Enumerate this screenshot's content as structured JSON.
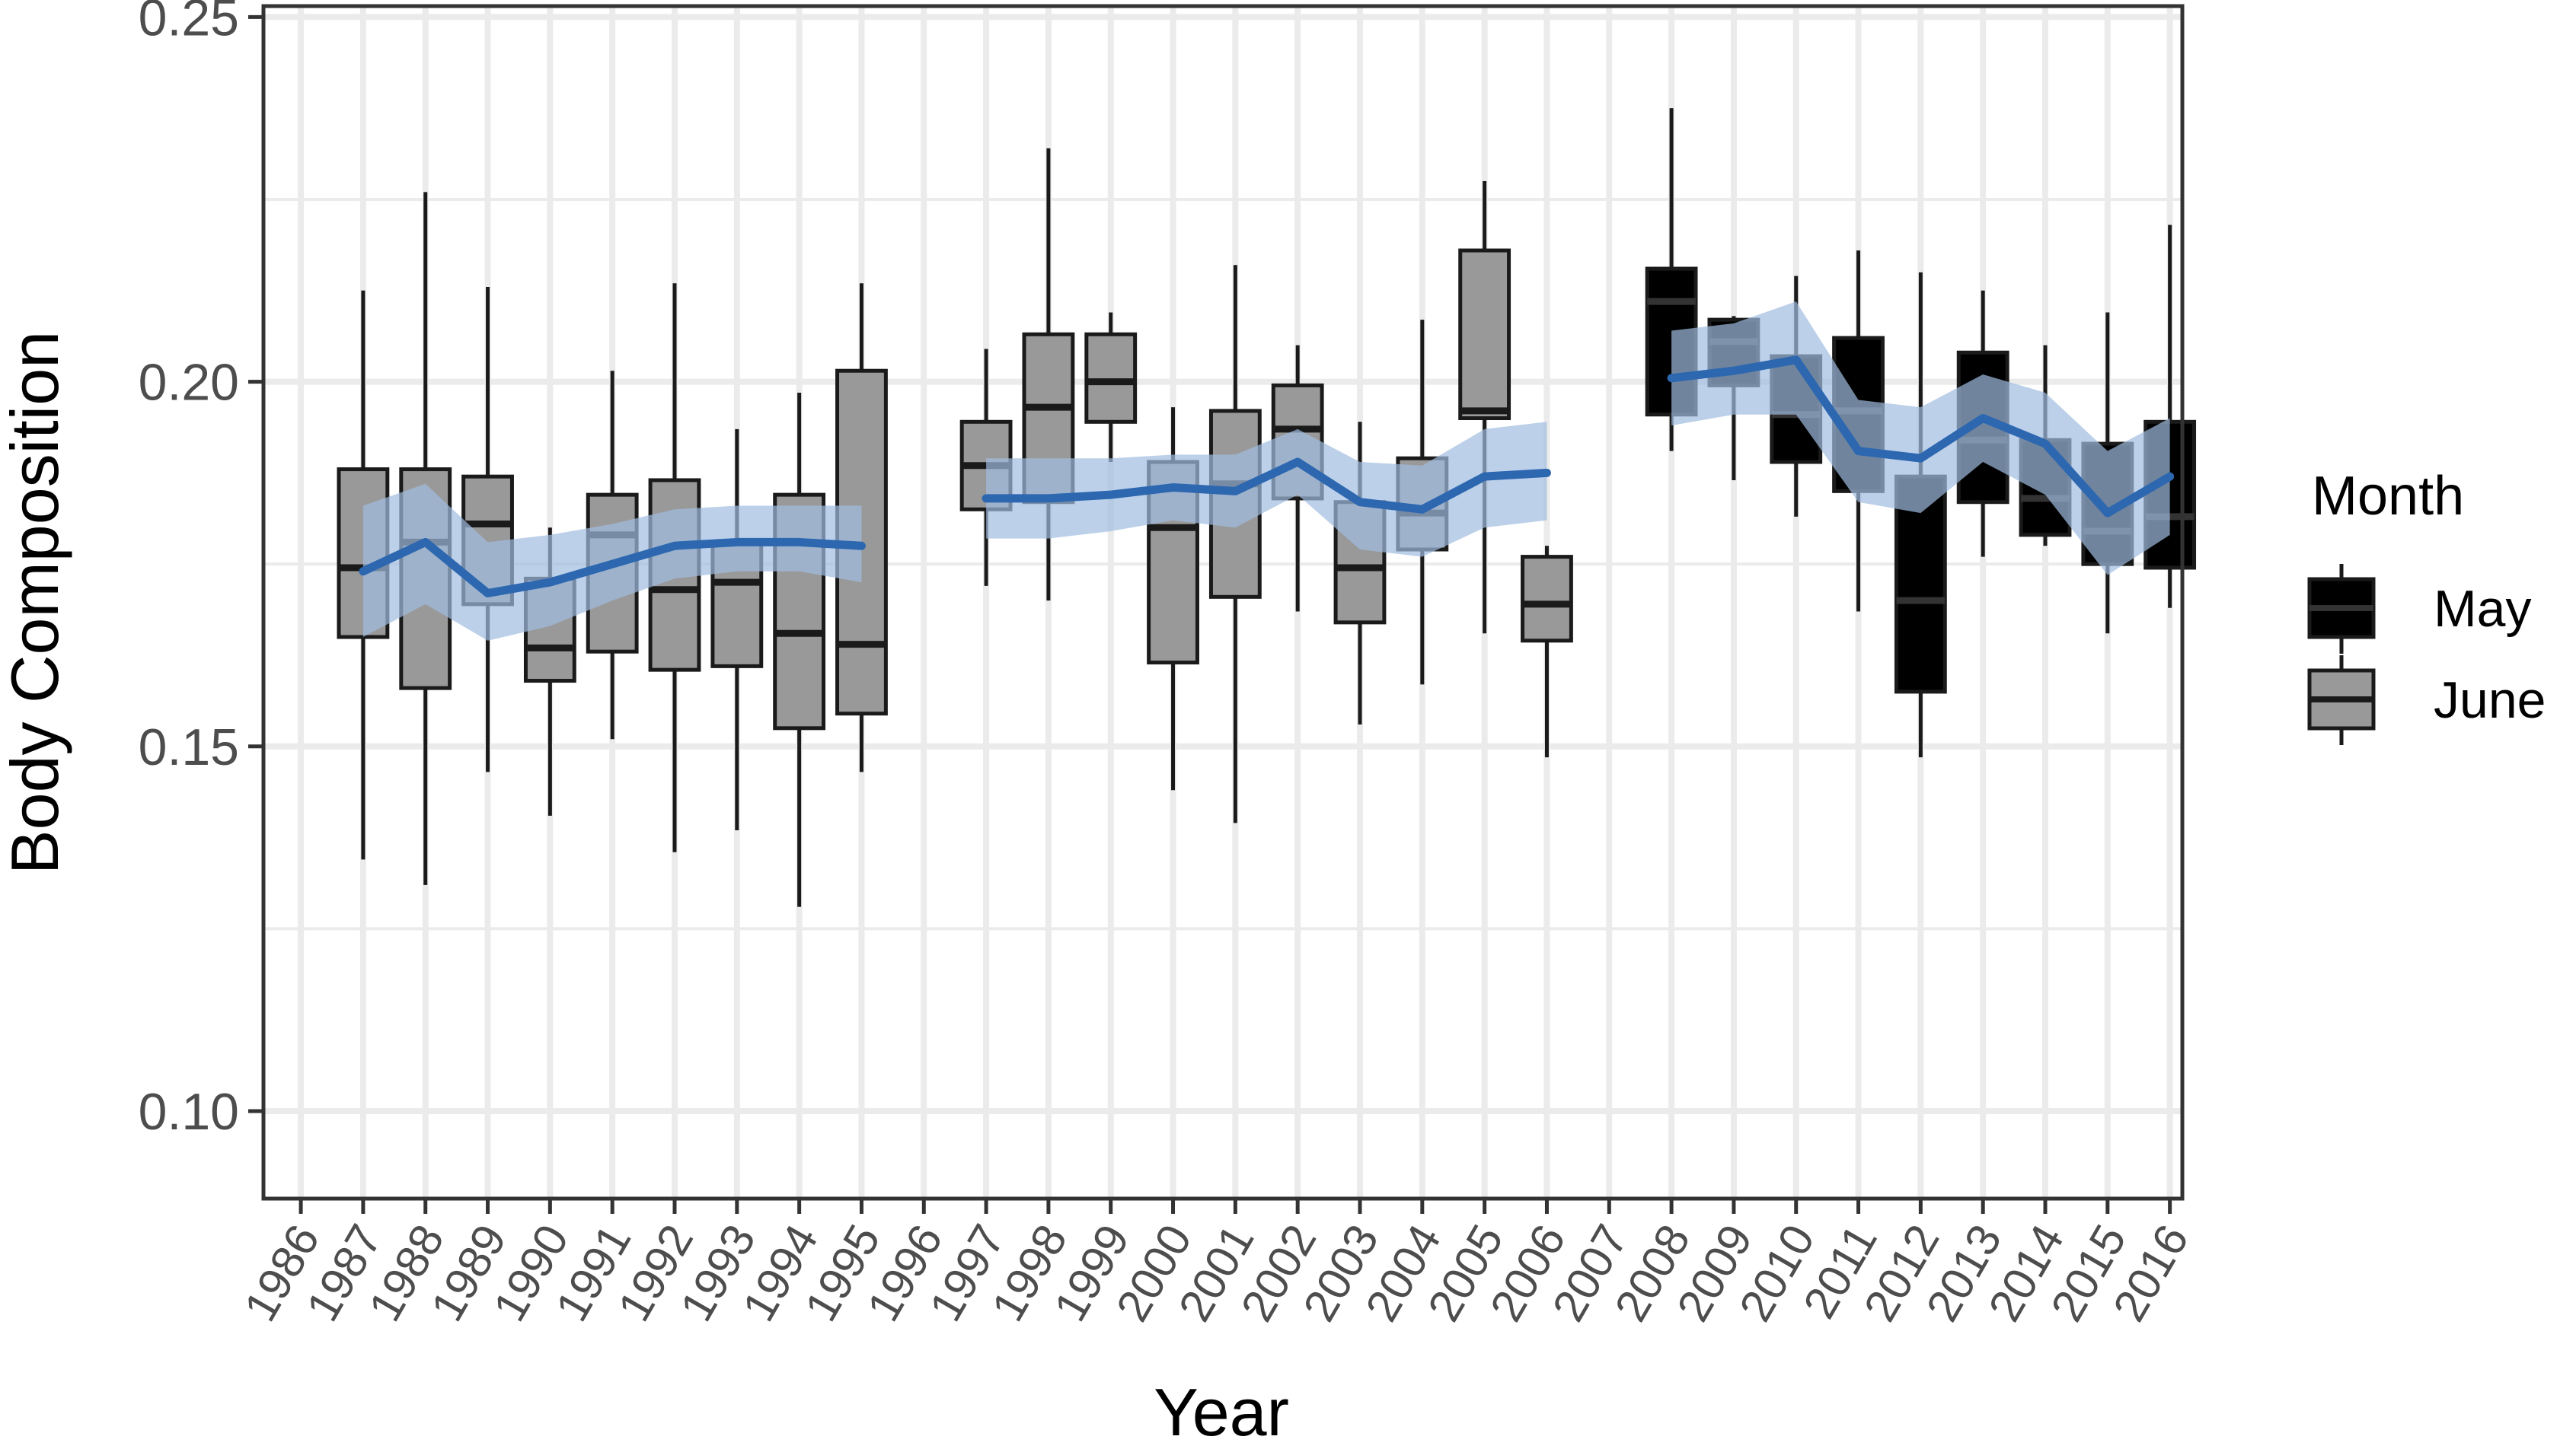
{
  "chart_data": {
    "type": "boxplot",
    "xlabel": "Year",
    "ylabel": "Body Composition",
    "ylim": [
      0.088,
      0.2515
    ],
    "y_ticks": [
      0.1,
      0.15,
      0.2,
      0.25
    ],
    "y_tick_labels": [
      "0.10",
      "0.15",
      "0.20",
      "0.25"
    ],
    "categories": [
      "1986",
      "1987",
      "1988",
      "1989",
      "1990",
      "1991",
      "1992",
      "1993",
      "1994",
      "1995",
      "1996",
      "1997",
      "1998",
      "1999",
      "2000",
      "2001",
      "2002",
      "2003",
      "2004",
      "2005",
      "2006",
      "2007",
      "2008",
      "2009",
      "2010",
      "2011",
      "2012",
      "2013",
      "2014",
      "2015",
      "2016"
    ],
    "grid": true,
    "colors": {
      "May": "#000000",
      "June": "#999999",
      "trend_line": "#2c67b0",
      "ribbon": "#9fbcdf",
      "grid": "#ebebeb",
      "text": "#4d4d4d"
    },
    "legend": {
      "title": "Month",
      "position": "right",
      "entries": [
        "May",
        "June"
      ]
    },
    "boxes": [
      {
        "year": "1987",
        "month": "June",
        "min": 0.1345,
        "q1": 0.165,
        "median": 0.1745,
        "q3": 0.188,
        "max": 0.2125
      },
      {
        "year": "1988",
        "month": "June",
        "min": 0.131,
        "q1": 0.158,
        "median": 0.178,
        "q3": 0.188,
        "max": 0.226
      },
      {
        "year": "1989",
        "month": "June",
        "min": 0.1465,
        "q1": 0.1695,
        "median": 0.1805,
        "q3": 0.187,
        "max": 0.213
      },
      {
        "year": "1990",
        "month": "June",
        "min": 0.1405,
        "q1": 0.159,
        "median": 0.1635,
        "q3": 0.173,
        "max": 0.18
      },
      {
        "year": "1991",
        "month": "June",
        "min": 0.151,
        "q1": 0.163,
        "median": 0.179,
        "q3": 0.1845,
        "max": 0.2015
      },
      {
        "year": "1992",
        "month": "June",
        "min": 0.1355,
        "q1": 0.1605,
        "median": 0.1715,
        "q3": 0.1865,
        "max": 0.2135
      },
      {
        "year": "1993",
        "month": "June",
        "min": 0.1385,
        "q1": 0.161,
        "median": 0.1725,
        "q3": 0.178,
        "max": 0.1935
      },
      {
        "year": "1994",
        "month": "June",
        "min": 0.128,
        "q1": 0.1525,
        "median": 0.1655,
        "q3": 0.1845,
        "max": 0.1985
      },
      {
        "year": "1995",
        "month": "June",
        "min": 0.1465,
        "q1": 0.1545,
        "median": 0.164,
        "q3": 0.2015,
        "max": 0.2135
      },
      {
        "year": "1997",
        "month": "June",
        "min": 0.172,
        "q1": 0.1825,
        "median": 0.1885,
        "q3": 0.1945,
        "max": 0.2045
      },
      {
        "year": "1998",
        "month": "June",
        "min": 0.17,
        "q1": 0.1835,
        "median": 0.1965,
        "q3": 0.2065,
        "max": 0.232
      },
      {
        "year": "1999",
        "month": "June",
        "min": 0.189,
        "q1": 0.1945,
        "median": 0.2,
        "q3": 0.2065,
        "max": 0.2095
      },
      {
        "year": "2000",
        "month": "June",
        "min": 0.144,
        "q1": 0.1615,
        "median": 0.18,
        "q3": 0.189,
        "max": 0.1965
      },
      {
        "year": "2001",
        "month": "June",
        "min": 0.1395,
        "q1": 0.1705,
        "median": 0.186,
        "q3": 0.196,
        "max": 0.216
      },
      {
        "year": "2002",
        "month": "June",
        "min": 0.1685,
        "q1": 0.184,
        "median": 0.1935,
        "q3": 0.1995,
        "max": 0.205
      },
      {
        "year": "2003",
        "month": "June",
        "min": 0.153,
        "q1": 0.167,
        "median": 0.1745,
        "q3": 0.1835,
        "max": 0.1945
      },
      {
        "year": "2004",
        "month": "June",
        "min": 0.1585,
        "q1": 0.177,
        "median": 0.182,
        "q3": 0.1895,
        "max": 0.2085
      },
      {
        "year": "2005",
        "month": "June",
        "min": 0.1655,
        "q1": 0.195,
        "median": 0.196,
        "q3": 0.218,
        "max": 0.2275
      },
      {
        "year": "2006",
        "month": "June",
        "min": 0.1485,
        "q1": 0.1645,
        "median": 0.1695,
        "q3": 0.176,
        "max": 0.1775
      },
      {
        "year": "2008",
        "month": "May",
        "min": 0.1905,
        "q1": 0.1955,
        "median": 0.211,
        "q3": 0.2155,
        "max": 0.2375
      },
      {
        "year": "2009",
        "month": "May",
        "min": 0.1865,
        "q1": 0.1995,
        "median": 0.2055,
        "q3": 0.2085,
        "max": 0.209
      },
      {
        "year": "2010",
        "month": "May",
        "min": 0.1815,
        "q1": 0.189,
        "median": 0.1955,
        "q3": 0.2035,
        "max": 0.2145
      },
      {
        "year": "2011",
        "month": "May",
        "min": 0.1685,
        "q1": 0.185,
        "median": 0.196,
        "q3": 0.206,
        "max": 0.218
      },
      {
        "year": "2012",
        "month": "May",
        "min": 0.1485,
        "q1": 0.1575,
        "median": 0.17,
        "q3": 0.187,
        "max": 0.215
      },
      {
        "year": "2013",
        "month": "May",
        "min": 0.176,
        "q1": 0.1835,
        "median": 0.192,
        "q3": 0.204,
        "max": 0.2125
      },
      {
        "year": "2014",
        "month": "May",
        "min": 0.1775,
        "q1": 0.179,
        "median": 0.184,
        "q3": 0.192,
        "max": 0.205
      },
      {
        "year": "2015",
        "month": "May",
        "min": 0.1655,
        "q1": 0.175,
        "median": 0.1795,
        "q3": 0.1915,
        "max": 0.2095
      },
      {
        "year": "2016",
        "month": "May",
        "min": 0.169,
        "q1": 0.1745,
        "median": 0.1815,
        "q3": 0.1945,
        "max": 0.2215
      }
    ],
    "trend_segments": [
      {
        "years": [
          "1987",
          "1988",
          "1989",
          "1990",
          "1991",
          "1992",
          "1993",
          "1994",
          "1995"
        ],
        "mean": [
          0.174,
          0.178,
          0.171,
          0.1725,
          0.175,
          0.1775,
          0.178,
          0.178,
          0.1775
        ],
        "lower": [
          0.165,
          0.1695,
          0.1645,
          0.1665,
          0.17,
          0.173,
          0.174,
          0.174,
          0.1725
        ],
        "upper": [
          0.183,
          0.186,
          0.178,
          0.179,
          0.1805,
          0.1825,
          0.183,
          0.183,
          0.183
        ]
      },
      {
        "years": [
          "1997",
          "1998",
          "1999",
          "2000",
          "2001",
          "2002",
          "2003",
          "2004",
          "2005",
          "2006"
        ],
        "mean": [
          0.184,
          0.184,
          0.1845,
          0.1855,
          0.185,
          0.189,
          0.1835,
          0.1825,
          0.187,
          0.1875
        ],
        "lower": [
          0.1785,
          0.1785,
          0.1795,
          0.181,
          0.18,
          0.1845,
          0.177,
          0.176,
          0.18,
          0.181
        ],
        "upper": [
          0.1895,
          0.1895,
          0.1895,
          0.19,
          0.19,
          0.1935,
          0.189,
          0.1885,
          0.1935,
          0.1945
        ]
      },
      {
        "years": [
          "2008",
          "2009",
          "2010",
          "2011",
          "2012",
          "2013",
          "2014",
          "2015",
          "2016"
        ],
        "mean": [
          0.2005,
          0.2015,
          0.203,
          0.1905,
          0.1895,
          0.195,
          0.1915,
          0.182,
          0.187
        ],
        "lower": [
          0.194,
          0.1955,
          0.1955,
          0.1835,
          0.182,
          0.189,
          0.1845,
          0.1735,
          0.179
        ],
        "upper": [
          0.207,
          0.208,
          0.211,
          0.1975,
          0.1965,
          0.201,
          0.1985,
          0.1905,
          0.195
        ]
      }
    ]
  }
}
